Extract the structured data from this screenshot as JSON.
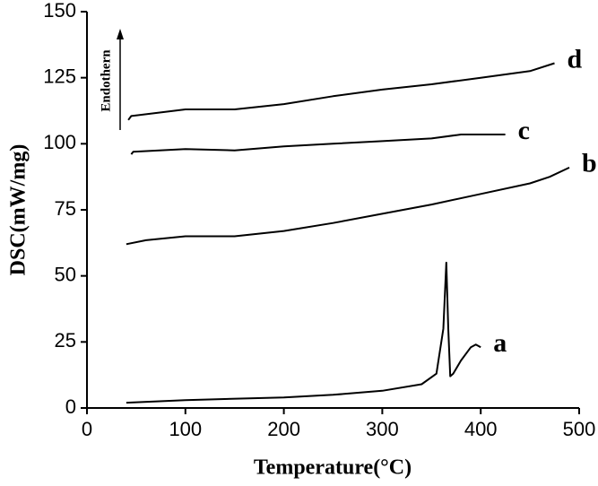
{
  "chart_data": {
    "type": "line",
    "x_label": "Temperature(°C)",
    "y_label": "DSC(mW/mg)",
    "annotation": "Endothern",
    "xlim": [
      0,
      500
    ],
    "xticks": [
      0,
      100,
      200,
      300,
      400,
      500
    ],
    "ylim": [
      0,
      150
    ],
    "yticks": [
      0,
      25,
      50,
      75,
      100,
      125,
      150
    ],
    "series": [
      {
        "name": "a",
        "color": "#000000",
        "x": [
          40,
          100,
          200,
          250,
          300,
          340,
          355,
          362,
          365,
          367,
          369,
          372,
          380,
          390,
          395,
          400
        ],
        "values": [
          2,
          3,
          4,
          5,
          6.5,
          9,
          13,
          30,
          55,
          30,
          12,
          13,
          18,
          23,
          24,
          23
        ]
      },
      {
        "name": "b",
        "color": "#000000",
        "x": [
          40,
          60,
          100,
          150,
          200,
          250,
          300,
          350,
          400,
          450,
          470,
          490
        ],
        "values": [
          62,
          63.5,
          65,
          65,
          67,
          70,
          73.5,
          77,
          81,
          85,
          87.5,
          91
        ]
      },
      {
        "name": "c",
        "color": "#000000",
        "x": [
          45,
          47,
          100,
          150,
          200,
          250,
          300,
          350,
          380,
          425
        ],
        "values": [
          96,
          97,
          98,
          97.5,
          99,
          100,
          101,
          102,
          103.5,
          103.5
        ]
      },
      {
        "name": "d",
        "color": "#000000",
        "x": [
          42,
          45,
          100,
          150,
          200,
          250,
          300,
          350,
          400,
          450,
          475
        ],
        "values": [
          109,
          110.5,
          113,
          113,
          115,
          118,
          120.5,
          122.5,
          125,
          127.5,
          130.5
        ]
      }
    ]
  }
}
